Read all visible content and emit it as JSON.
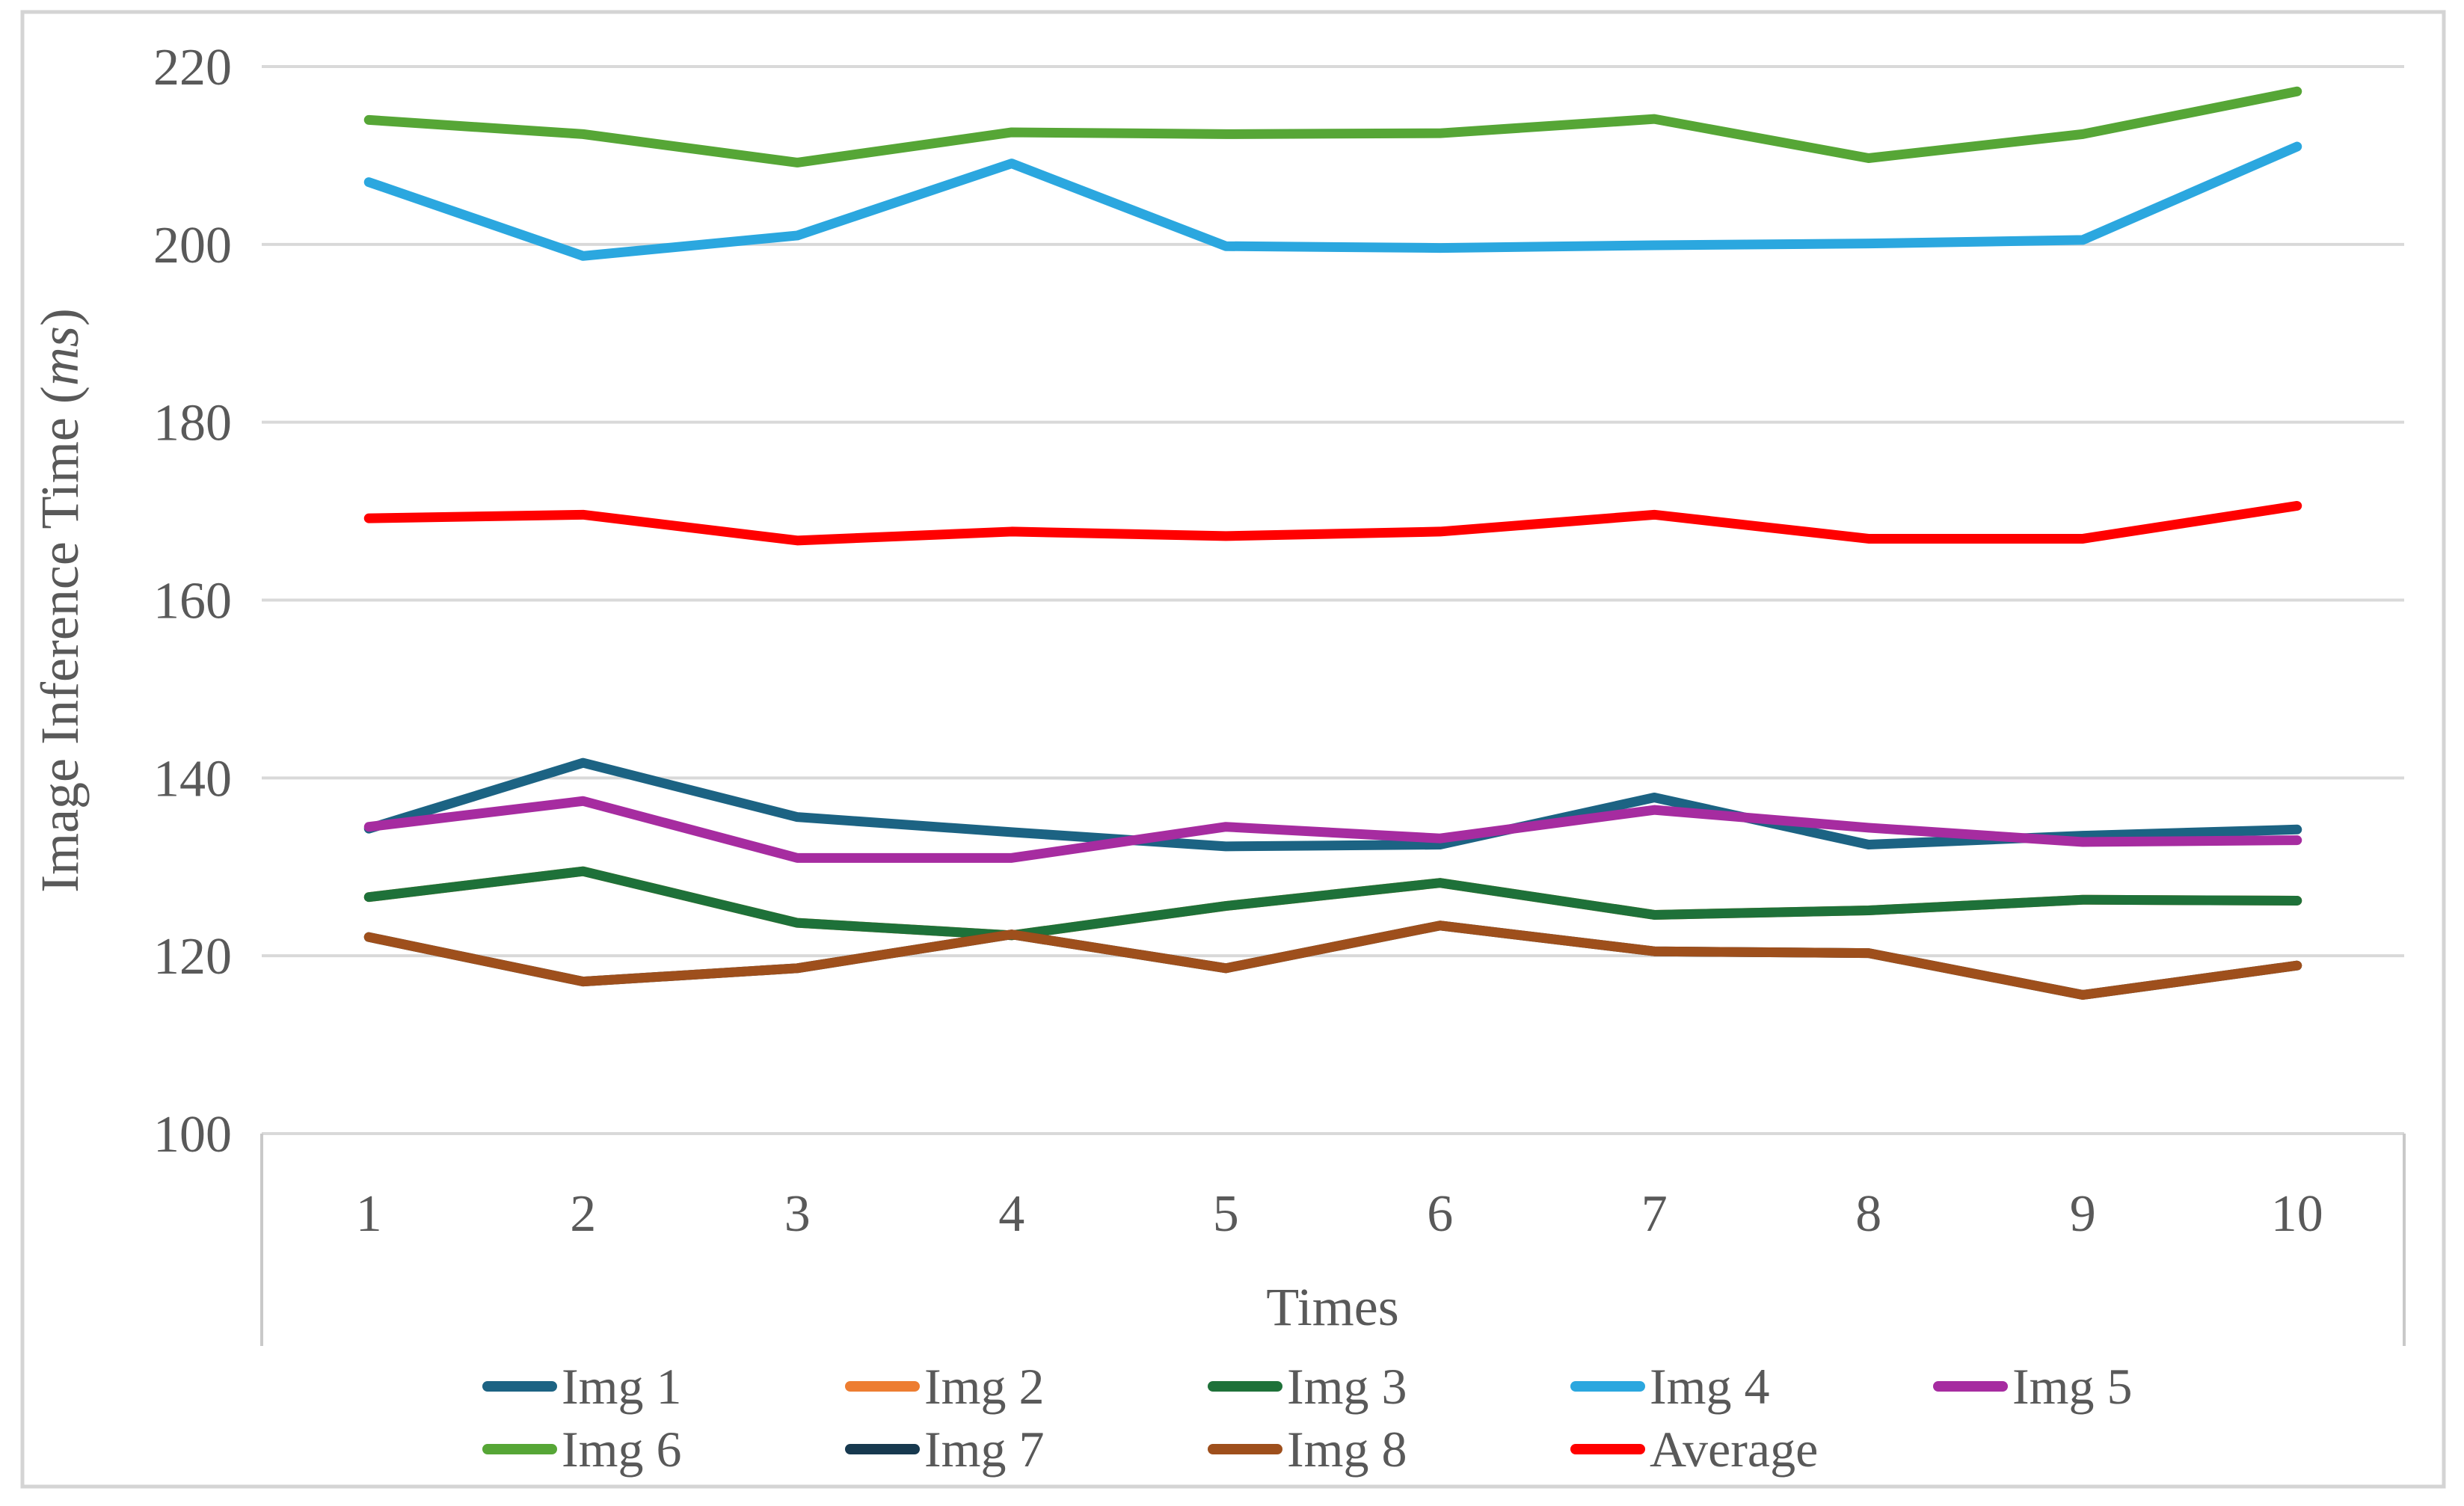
{
  "figure": {
    "kind": "excel-style line chart",
    "title": "",
    "border_color": "#D4D4D4",
    "background": "#FFFFFF"
  },
  "axes": {
    "x_title": "Times",
    "y_title_prefix": "Image Inference Time (",
    "y_title_italic": "ms",
    "y_title_suffix": ")",
    "x_tick_labels": [
      "1",
      "2",
      "3",
      "4",
      "5",
      "6",
      "7",
      "8",
      "9",
      "10"
    ],
    "y_tick_labels": [
      "100",
      "120",
      "140",
      "160",
      "180",
      "200",
      "220"
    ],
    "y_min": 100,
    "y_max": 220,
    "y_step": 20,
    "grid_color": "#D9D9D9",
    "axis_line_color": "#C9C9C9",
    "text_color": "#595959"
  },
  "legend": {
    "rows": [
      5,
      4
    ],
    "text_color": "#595959"
  },
  "chart_data": {
    "type": "line",
    "title": "",
    "xlabel": "Times",
    "ylabel": "Image Inference Time (ms)",
    "categories": [
      1,
      2,
      3,
      4,
      5,
      6,
      7,
      8,
      9,
      10
    ],
    "ylim": [
      100,
      220
    ],
    "yticks": [
      100,
      120,
      140,
      160,
      180,
      200,
      220
    ],
    "grid": true,
    "legend_position": "bottom",
    "series": [
      {
        "name": "Img 1",
        "color": "#1C6383",
        "values": [
          134.3,
          141.7,
          135.6,
          133.9,
          132.3,
          132.5,
          137.8,
          132.5,
          133.5,
          134.2
        ]
      },
      {
        "name": "Img 2",
        "color": "#ED7D31",
        "visually_hidden_behind": "Img 3",
        "values": [
          126.6,
          129.5,
          123.7,
          122.3,
          125.6,
          128.2,
          124.6,
          125.1,
          126.3,
          126.2
        ]
      },
      {
        "name": "Img 3",
        "color": "#1E7139",
        "values": [
          126.6,
          129.5,
          123.7,
          122.3,
          125.6,
          128.2,
          124.6,
          125.1,
          126.3,
          126.2
        ]
      },
      {
        "name": "Img 4",
        "color": "#2BA7DF",
        "values": [
          207.0,
          198.7,
          201.0,
          209.1,
          199.8,
          199.6,
          199.9,
          200.1,
          200.5,
          211.0
        ]
      },
      {
        "name": "Img 5",
        "color": "#A62CA0",
        "values": [
          134.5,
          137.4,
          131.0,
          131.0,
          134.5,
          133.2,
          136.4,
          134.4,
          132.8,
          133.0
        ]
      },
      {
        "name": "Img 6",
        "color": "#56A636",
        "values": [
          214.0,
          212.4,
          209.2,
          212.6,
          212.4,
          212.5,
          214.1,
          209.7,
          212.4,
          217.2
        ]
      },
      {
        "name": "Img 7",
        "color": "#17394F",
        "visually_hidden_behind": "Img 8",
        "values": [
          122.1,
          117.1,
          118.6,
          122.4,
          118.6,
          123.4,
          120.5,
          120.3,
          115.6,
          118.9
        ]
      },
      {
        "name": "Img 8",
        "color": "#9E4F1C",
        "values": [
          122.1,
          117.1,
          118.6,
          122.4,
          118.6,
          123.4,
          120.5,
          120.3,
          115.6,
          118.9
        ]
      },
      {
        "name": "Average",
        "color": "#FF0000",
        "values": [
          169.2,
          169.6,
          166.7,
          167.7,
          167.2,
          167.7,
          169.6,
          166.9,
          166.9,
          170.6
        ]
      }
    ]
  }
}
